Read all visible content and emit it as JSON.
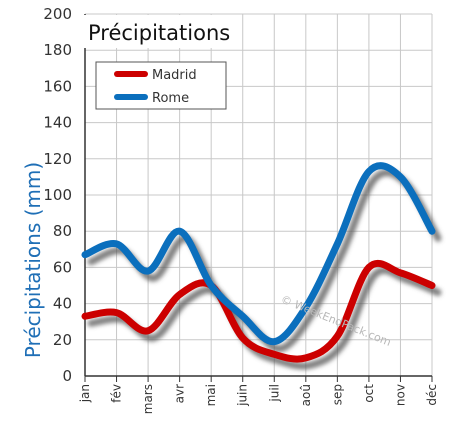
{
  "chart_data": {
    "type": "line",
    "title": "Précipitations",
    "ylabel": "Précipitations (mm)",
    "xlabel": "",
    "ylim": [
      0,
      200
    ],
    "y_ticks": [
      "0",
      "20",
      "40",
      "60",
      "80",
      "100",
      "120",
      "140",
      "160",
      "180",
      "200"
    ],
    "categories": [
      "jan",
      "fév",
      "mars",
      "avr",
      "mai",
      "juin",
      "juil",
      "aoû",
      "sep",
      "oct",
      "nov",
      "déc"
    ],
    "series": [
      {
        "name": "Madrid",
        "color": "#cc0000",
        "values": [
          33,
          35,
          25,
          45,
          50,
          21,
          12,
          10,
          22,
          60,
          57,
          50
        ]
      },
      {
        "name": "Rome",
        "color": "#0b6fbd",
        "values": [
          67,
          73,
          58,
          80,
          50,
          33,
          19,
          38,
          73,
          113,
          110,
          80
        ]
      }
    ],
    "grid": true,
    "legend_placement": "top-left",
    "watermark": "© WeekEndPack.com"
  }
}
